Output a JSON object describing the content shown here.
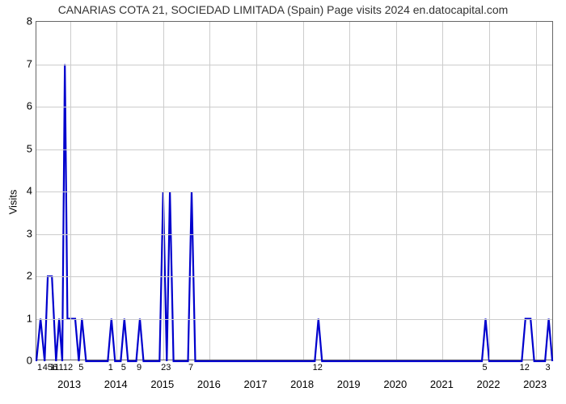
{
  "chart": {
    "type": "line",
    "title": "CANARIAS COTA 21, SOCIEDAD LIMITADA (Spain) Page visits 2024 en.datocapital.com",
    "title_fontsize": 14,
    "title_color": "#333333",
    "ylabel": "Visits",
    "ylabel_fontsize": 13,
    "background_color": "#ffffff",
    "border_color": "#666666",
    "grid_color": "#cccccc",
    "tick_color": "#000000",
    "tick_fontsize_y": 13,
    "tick_fontsize_x_major": 13,
    "tick_fontsize_x_minor": 11,
    "line_color": "#0000cd",
    "line_width": 2.2,
    "ylim": [
      0,
      8
    ],
    "ytick_step": 1,
    "x_major_ticks": [
      {
        "pos": 0.065,
        "label": "2013"
      },
      {
        "pos": 0.155,
        "label": "2014"
      },
      {
        "pos": 0.245,
        "label": "2015"
      },
      {
        "pos": 0.335,
        "label": "2016"
      },
      {
        "pos": 0.425,
        "label": "2017"
      },
      {
        "pos": 0.515,
        "label": "2018"
      },
      {
        "pos": 0.605,
        "label": "2019"
      },
      {
        "pos": 0.695,
        "label": "2020"
      },
      {
        "pos": 0.785,
        "label": "2021"
      },
      {
        "pos": 0.875,
        "label": "2022"
      },
      {
        "pos": 0.965,
        "label": "2023"
      }
    ],
    "x_major_grid": [
      0.065,
      0.155,
      0.245,
      0.335,
      0.425,
      0.515,
      0.605,
      0.695,
      0.785,
      0.875,
      0.965
    ],
    "x_minor_ticks": [
      {
        "pos": 0.008,
        "label": "1"
      },
      {
        "pos": 0.028,
        "label": "456"
      },
      {
        "pos": 0.05,
        "label": "11112"
      },
      {
        "pos": 0.088,
        "label": "5"
      },
      {
        "pos": 0.145,
        "label": "1"
      },
      {
        "pos": 0.17,
        "label": "5"
      },
      {
        "pos": 0.2,
        "label": "9"
      },
      {
        "pos": 0.252,
        "label": "23"
      },
      {
        "pos": 0.3,
        "label": "7"
      },
      {
        "pos": 0.545,
        "label": "12"
      },
      {
        "pos": 0.868,
        "label": "5"
      },
      {
        "pos": 0.945,
        "label": "12"
      },
      {
        "pos": 0.99,
        "label": "3"
      }
    ],
    "series": [
      {
        "x": 0.0,
        "y": 0.0
      },
      {
        "x": 0.008,
        "y": 1.0
      },
      {
        "x": 0.016,
        "y": 0.0
      },
      {
        "x": 0.022,
        "y": 2.0
      },
      {
        "x": 0.03,
        "y": 2.0
      },
      {
        "x": 0.038,
        "y": 0.0
      },
      {
        "x": 0.044,
        "y": 1.0
      },
      {
        "x": 0.05,
        "y": 0.0
      },
      {
        "x": 0.055,
        "y": 7.0
      },
      {
        "x": 0.06,
        "y": 1.0
      },
      {
        "x": 0.075,
        "y": 1.0
      },
      {
        "x": 0.082,
        "y": 0.0
      },
      {
        "x": 0.088,
        "y": 1.0
      },
      {
        "x": 0.096,
        "y": 0.0
      },
      {
        "x": 0.138,
        "y": 0.0
      },
      {
        "x": 0.145,
        "y": 1.0
      },
      {
        "x": 0.152,
        "y": 0.0
      },
      {
        "x": 0.163,
        "y": 0.0
      },
      {
        "x": 0.17,
        "y": 1.0
      },
      {
        "x": 0.177,
        "y": 0.0
      },
      {
        "x": 0.193,
        "y": 0.0
      },
      {
        "x": 0.2,
        "y": 1.0
      },
      {
        "x": 0.207,
        "y": 0.0
      },
      {
        "x": 0.238,
        "y": 0.0
      },
      {
        "x": 0.245,
        "y": 4.0
      },
      {
        "x": 0.252,
        "y": 0.0
      },
      {
        "x": 0.258,
        "y": 4.0
      },
      {
        "x": 0.265,
        "y": 0.0
      },
      {
        "x": 0.293,
        "y": 0.0
      },
      {
        "x": 0.3,
        "y": 4.0
      },
      {
        "x": 0.307,
        "y": 0.0
      },
      {
        "x": 0.538,
        "y": 0.0
      },
      {
        "x": 0.545,
        "y": 1.0
      },
      {
        "x": 0.552,
        "y": 0.0
      },
      {
        "x": 0.861,
        "y": 0.0
      },
      {
        "x": 0.868,
        "y": 1.0
      },
      {
        "x": 0.875,
        "y": 0.0
      },
      {
        "x": 0.938,
        "y": 0.0
      },
      {
        "x": 0.945,
        "y": 1.0
      },
      {
        "x": 0.955,
        "y": 1.0
      },
      {
        "x": 0.962,
        "y": 0.0
      },
      {
        "x": 0.983,
        "y": 0.0
      },
      {
        "x": 0.99,
        "y": 1.0
      },
      {
        "x": 0.997,
        "y": 0.0
      }
    ]
  }
}
